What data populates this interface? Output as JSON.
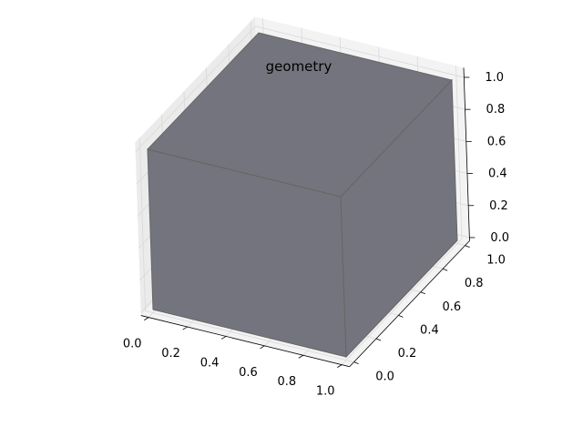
{
  "chart_data": {
    "type": "3d-surface",
    "title": "geometry",
    "xlabel": "",
    "ylabel": "",
    "zlabel": "",
    "x_ticks": [
      "0.0",
      "0.2",
      "0.4",
      "0.6",
      "0.8",
      "1.0"
    ],
    "y_ticks": [
      "0.0",
      "0.2",
      "0.4",
      "0.6",
      "0.8",
      "1.0"
    ],
    "z_ticks": [
      "0.0",
      "0.2",
      "0.4",
      "0.6",
      "0.8",
      "1.0"
    ],
    "xlim": [
      0,
      1
    ],
    "ylim": [
      0,
      1
    ],
    "zlim": [
      0,
      1
    ],
    "grid": true,
    "shape": {
      "name": "unit cube",
      "x_range": [
        0,
        1
      ],
      "y_range": [
        0,
        1
      ],
      "z_range": [
        0,
        1
      ],
      "face_color": "#74747e",
      "edge_color": "#666666"
    },
    "colors": {
      "pane": "#f3f3f3",
      "pane_side": "#ebebeb",
      "grid": "#d9d9d9",
      "axis_line": "#000000"
    }
  }
}
